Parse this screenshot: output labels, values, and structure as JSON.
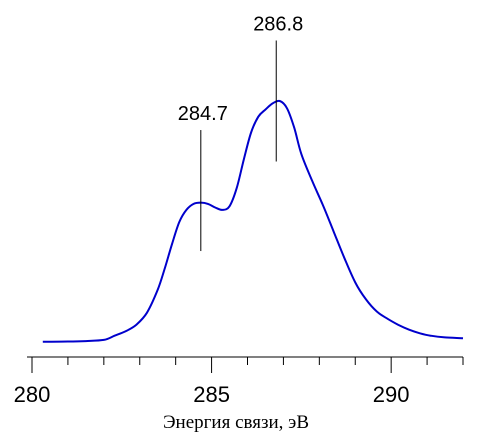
{
  "chart_data": {
    "type": "line",
    "title": "",
    "xlabel": "Энергия связи, эВ",
    "ylabel": "",
    "xlim": [
      280,
      292
    ],
    "ylim": [
      0,
      100
    ],
    "x_ticks_major": [
      280,
      285,
      290
    ],
    "x_tick_labels": [
      "280",
      "285",
      "290"
    ],
    "x_ticks_minor_step": 1,
    "grid": false,
    "line_color": "#0000cc",
    "series": [
      {
        "x": [
          280.3,
          281.0,
          281.5,
          282.0,
          282.3,
          282.6,
          282.9,
          283.2,
          283.5,
          283.7,
          283.9,
          284.1,
          284.3,
          284.5,
          284.7,
          284.9,
          285.1,
          285.3,
          285.5,
          285.7,
          285.9,
          286.1,
          286.3,
          286.5,
          286.7,
          286.9,
          287.1,
          287.3,
          287.5,
          287.8,
          288.1,
          288.4,
          288.7,
          289.0,
          289.3,
          289.6,
          289.9,
          290.2,
          290.5,
          290.8,
          291.1,
          291.5,
          292.0
        ],
        "y": [
          0.5,
          0.6,
          0.8,
          1.3,
          3.0,
          4.8,
          7.5,
          12.5,
          22.0,
          31.0,
          41.0,
          50.0,
          55.0,
          57.5,
          58.0,
          57.5,
          56.0,
          55.0,
          56.5,
          64.0,
          76.0,
          87.0,
          93.5,
          96.5,
          99.0,
          100.0,
          97.0,
          89.0,
          78.0,
          67.0,
          57.0,
          46.0,
          35.0,
          25.0,
          18.0,
          13.0,
          10.0,
          7.5,
          5.5,
          4.0,
          3.0,
          2.3,
          2.0
        ]
      }
    ],
    "annotations": [
      {
        "x": 284.7,
        "text": "284.7",
        "y_low": 38,
        "y_high": 88
      },
      {
        "x": 286.8,
        "text": "286.8",
        "y_low": 75,
        "y_high": 125
      }
    ]
  }
}
